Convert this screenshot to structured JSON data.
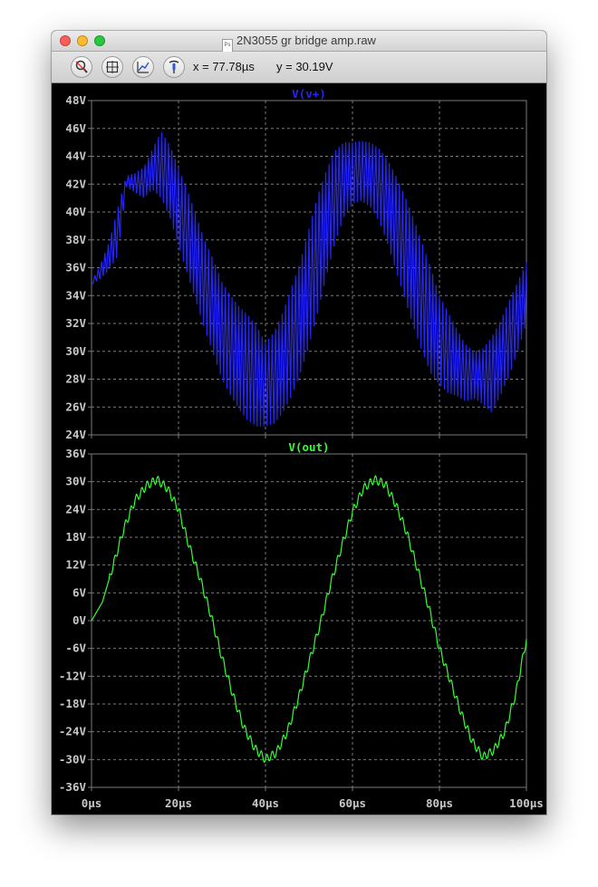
{
  "window": {
    "title": "2N3055 gr bridge amp.raw",
    "doc_icon_text": "Ps"
  },
  "toolbar": {
    "buttons": [
      {
        "name": "zoom-icon"
      },
      {
        "name": "zoom-extents-icon"
      },
      {
        "name": "autorange-icon"
      },
      {
        "name": "probe-icon"
      }
    ],
    "x_readout": "x = 77.78µs",
    "y_readout": "y = 30.19V"
  },
  "colors": {
    "plot_background": "#000000",
    "grid": "#7a7a7a",
    "axis_text": "#c8c8c8",
    "series_v_plus": "#2424ff",
    "series_v_out": "#32ff32"
  },
  "chart_data": [
    {
      "type": "line",
      "title": "V(v+)",
      "xlabel": "",
      "ylabel": "",
      "xlim": [
        0,
        100
      ],
      "ylim": [
        24,
        48
      ],
      "x_unit": "µs",
      "y_ticks": [
        "48V",
        "46V",
        "44V",
        "42V",
        "40V",
        "38V",
        "36V",
        "34V",
        "32V",
        "30V",
        "28V",
        "26V",
        "24V"
      ],
      "x_ticks": [
        "0µs",
        "20µs",
        "40µs",
        "60µs",
        "80µs",
        "100µs"
      ],
      "grid": true,
      "series": [
        {
          "name": "V(v+)",
          "color": "#2424ff",
          "x": [
            0,
            2,
            4,
            6,
            8,
            10,
            12,
            14,
            16,
            18,
            20,
            22,
            24,
            26,
            28,
            30,
            32,
            34,
            36,
            38,
            40,
            42,
            44,
            46,
            48,
            50,
            52,
            54,
            56,
            58,
            60,
            62,
            64,
            66,
            68,
            70,
            72,
            74,
            76,
            78,
            80,
            82,
            84,
            86,
            88,
            90,
            92,
            94,
            96,
            98,
            100
          ],
          "upper": [
            35.0,
            36.2,
            37.8,
            40.2,
            42.6,
            42.8,
            43.2,
            44.5,
            45.8,
            44.8,
            43.2,
            41.6,
            39.8,
            38.0,
            36.6,
            35.0,
            34.0,
            33.2,
            32.6,
            31.8,
            30.6,
            31.4,
            32.8,
            34.6,
            36.4,
            38.8,
            41.2,
            43.0,
            44.4,
            45.0,
            45.0,
            45.1,
            45.0,
            44.6,
            43.8,
            42.6,
            41.2,
            39.6,
            37.8,
            36.0,
            34.0,
            32.8,
            31.6,
            30.5,
            30.0,
            30.2,
            31.0,
            32.2,
            33.6,
            35.0,
            36.4
          ],
          "lower": [
            34.8,
            35.2,
            35.8,
            36.8,
            41.8,
            41.4,
            41.0,
            41.6,
            41.0,
            39.6,
            37.6,
            35.6,
            33.6,
            31.6,
            29.8,
            28.0,
            26.8,
            25.8,
            25.0,
            24.6,
            24.6,
            24.8,
            25.6,
            26.8,
            28.4,
            30.4,
            32.8,
            35.4,
            37.8,
            39.6,
            40.6,
            40.8,
            40.4,
            39.4,
            37.8,
            35.8,
            33.8,
            31.8,
            30.0,
            28.4,
            27.6,
            27.0,
            26.8,
            26.4,
            26.6,
            26.2,
            25.6,
            26.8,
            28.2,
            30.0,
            32.0
          ]
        }
      ]
    },
    {
      "type": "line",
      "title": "V(out)",
      "xlabel": "",
      "ylabel": "",
      "xlim": [
        0,
        100
      ],
      "ylim": [
        -36,
        36
      ],
      "x_unit": "µs",
      "y_ticks": [
        "36V",
        "30V",
        "24V",
        "18V",
        "12V",
        "6V",
        "0V",
        "-6V",
        "-12V",
        "-18V",
        "-24V",
        "-30V",
        "-36V"
      ],
      "x_ticks": [
        "0µs",
        "20µs",
        "40µs",
        "60µs",
        "80µs",
        "100µs"
      ],
      "grid": true,
      "series": [
        {
          "name": "V(out)",
          "color": "#32ff32",
          "x": [
            0,
            2.5,
            5,
            7.5,
            10,
            12.5,
            15,
            17.5,
            20,
            22.5,
            25,
            27.5,
            30,
            32.5,
            35,
            37.5,
            40,
            42.5,
            45,
            47.5,
            50,
            52.5,
            55,
            57.5,
            60,
            62.5,
            65,
            67.5,
            70,
            72.5,
            75,
            77.5,
            80,
            82.5,
            85,
            87.5,
            90,
            92.5,
            95,
            97.5,
            100
          ],
          "y": [
            0,
            4,
            12,
            20,
            26,
            29,
            30.5,
            28.5,
            24,
            16,
            9,
            1,
            -8,
            -16,
            -23,
            -27.5,
            -30,
            -28.5,
            -24,
            -17,
            -9,
            -1,
            8,
            16,
            23.5,
            28.5,
            30.5,
            29.5,
            25,
            19,
            11,
            3,
            -6,
            -13,
            -20,
            -26,
            -29.5,
            -28,
            -24,
            -16,
            -4
          ]
        }
      ]
    }
  ]
}
